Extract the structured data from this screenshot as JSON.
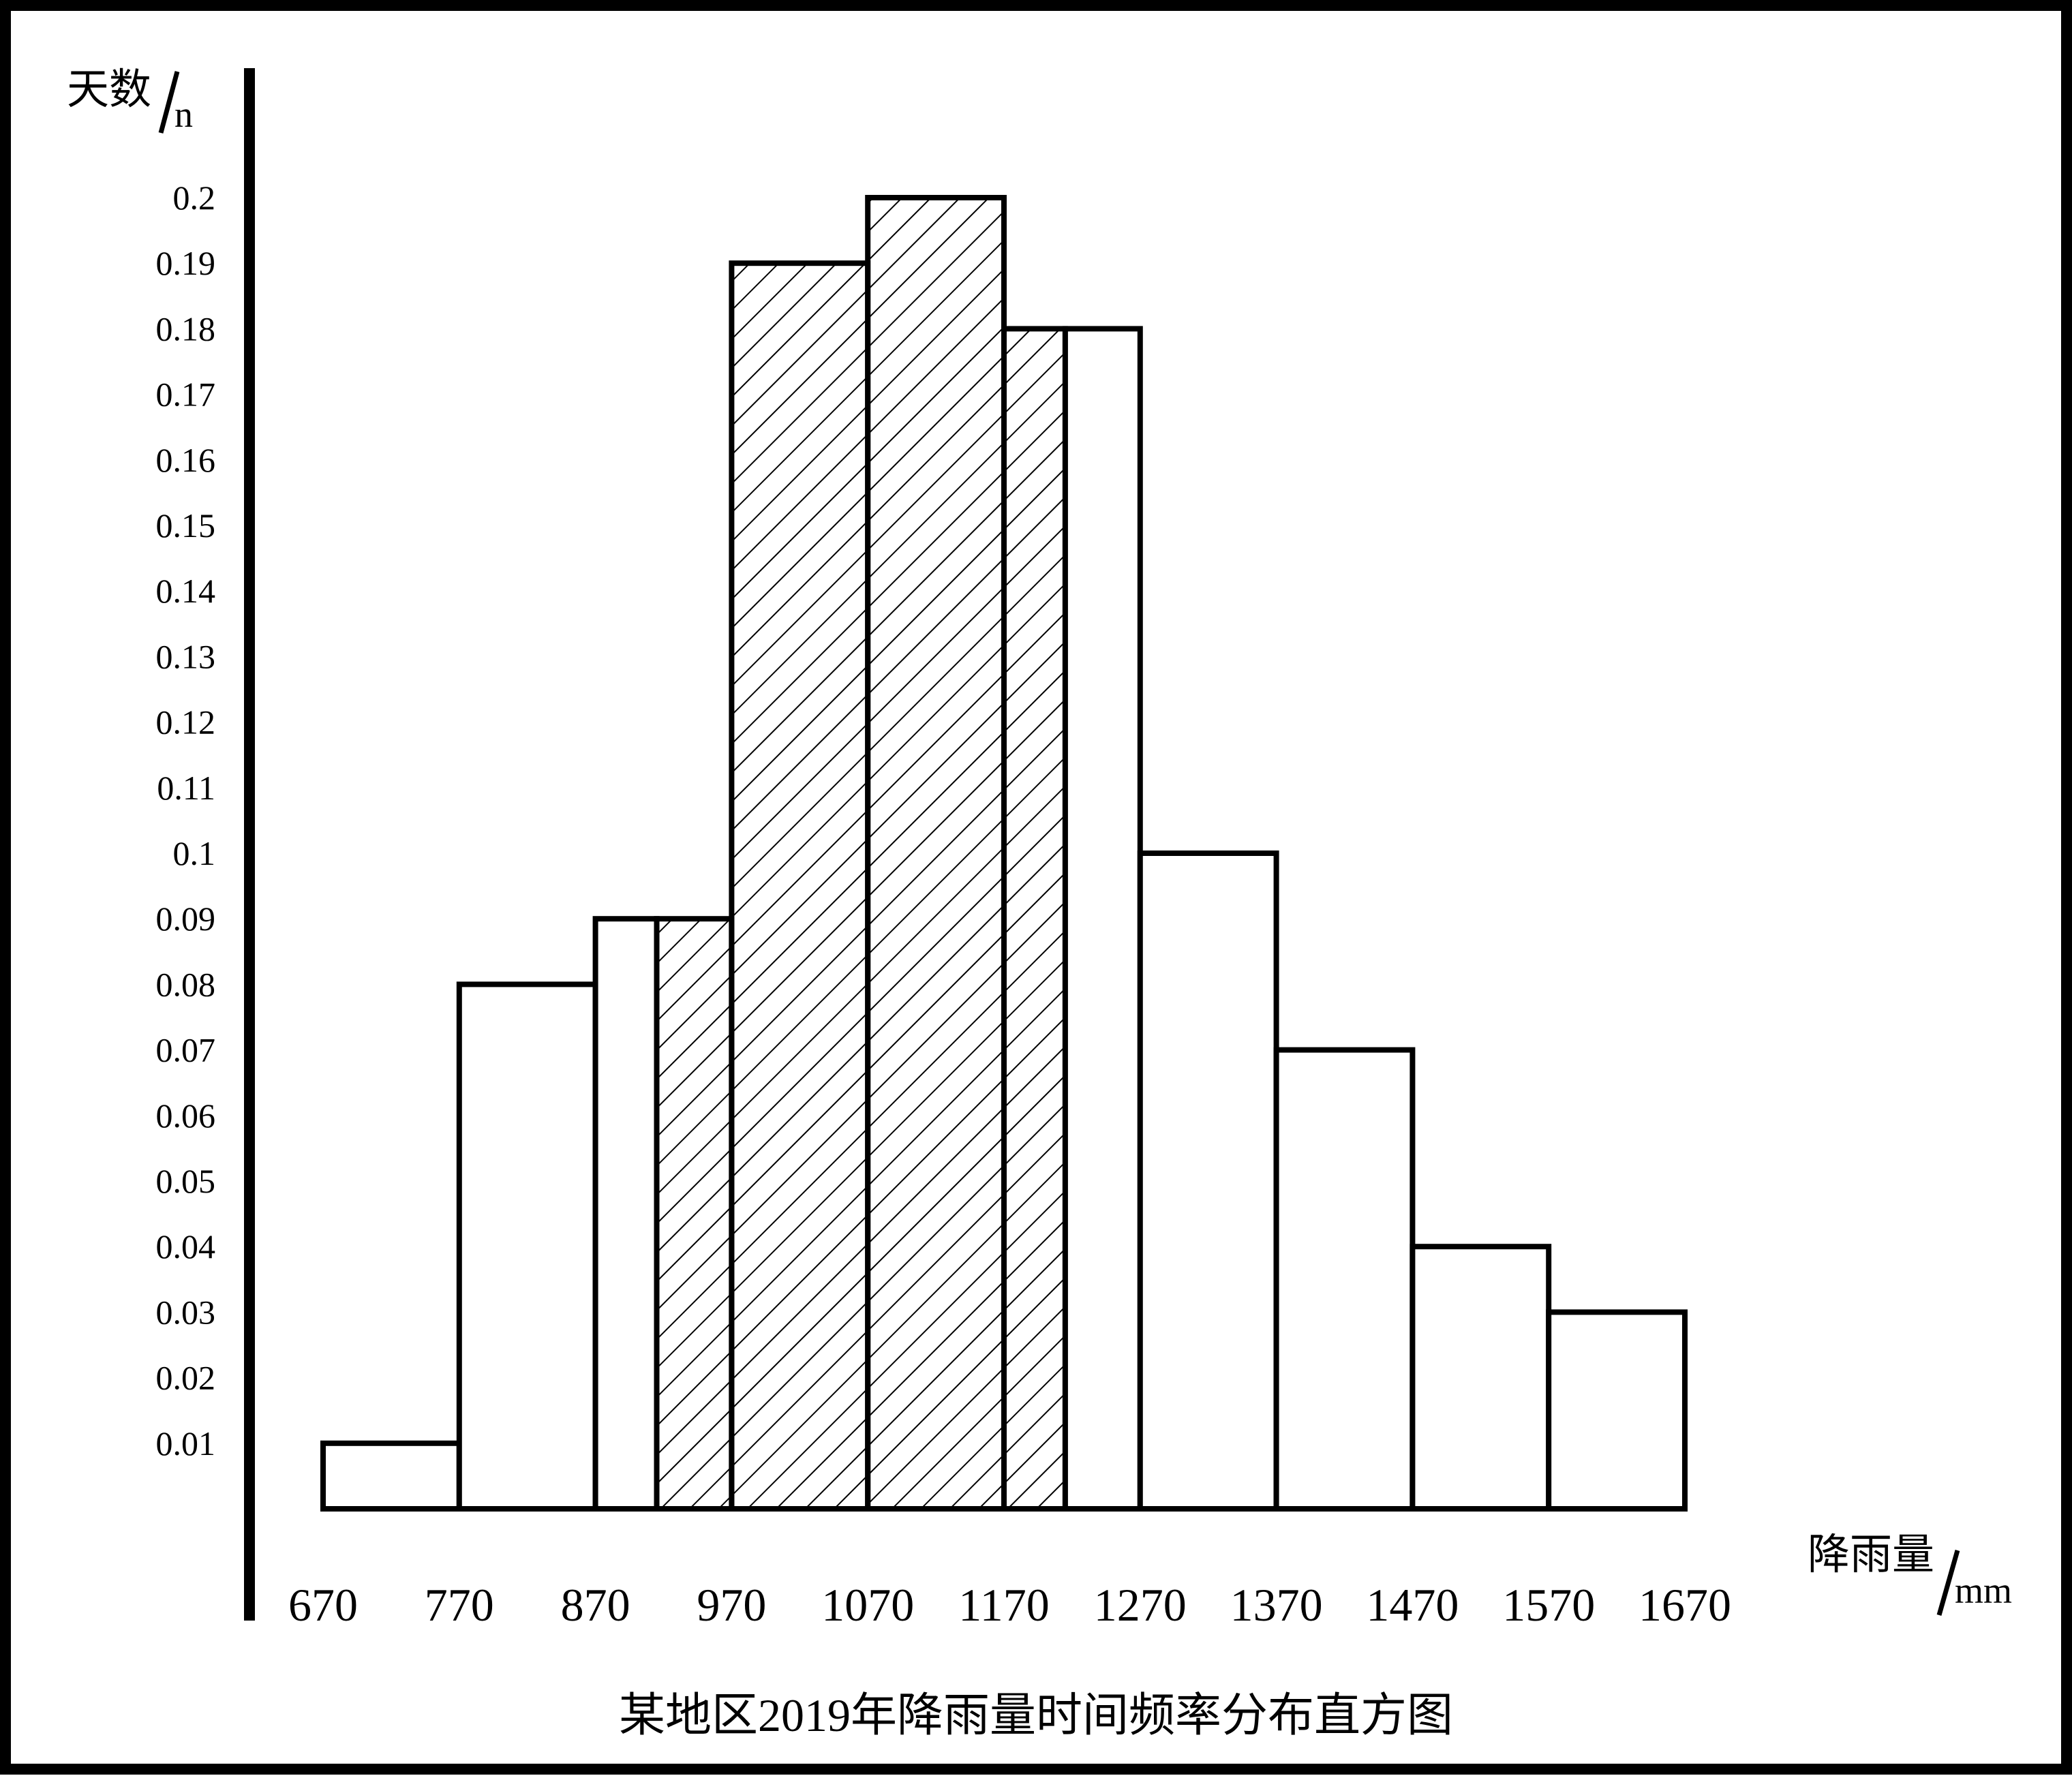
{
  "chart_data": {
    "type": "bar",
    "title": "某地区2019年降雨量时间频率分布直方图",
    "y_axis": {
      "label": "天数",
      "unit": "n"
    },
    "x_axis": {
      "label": "降雨量",
      "unit": "mm"
    },
    "y_ticks": [
      "0.01",
      "0.02",
      "0.03",
      "0.04",
      "0.05",
      "0.06",
      "0.07",
      "0.08",
      "0.09",
      "0.1",
      "0.11",
      "0.12",
      "0.13",
      "0.14",
      "0.15",
      "0.16",
      "0.17",
      "0.18",
      "0.19",
      "0.2"
    ],
    "x_ticks": [
      "670",
      "770",
      "870",
      "970",
      "1070",
      "1170",
      "1270",
      "1370",
      "1470",
      "1570",
      "1670"
    ],
    "xlim": [
      670,
      1670
    ],
    "ylim": [
      0,
      0.2
    ],
    "bins": [
      {
        "from": 670,
        "to": 770,
        "value": 0.01,
        "hatched": false
      },
      {
        "from": 770,
        "to": 870,
        "value": 0.08,
        "hatched": false
      },
      {
        "from": 870,
        "to": 915,
        "value": 0.09,
        "hatched": false
      },
      {
        "from": 915,
        "to": 970,
        "value": 0.09,
        "hatched": true
      },
      {
        "from": 970,
        "to": 1070,
        "value": 0.19,
        "hatched": true
      },
      {
        "from": 1070,
        "to": 1170,
        "value": 0.2,
        "hatched": true
      },
      {
        "from": 1170,
        "to": 1215,
        "value": 0.18,
        "hatched": true
      },
      {
        "from": 1215,
        "to": 1270,
        "value": 0.18,
        "hatched": false
      },
      {
        "from": 1270,
        "to": 1370,
        "value": 0.1,
        "hatched": false
      },
      {
        "from": 1370,
        "to": 1470,
        "value": 0.07,
        "hatched": false
      },
      {
        "from": 1470,
        "to": 1570,
        "value": 0.04,
        "hatched": false
      },
      {
        "from": 1570,
        "to": 1670,
        "value": 0.03,
        "hatched": false
      }
    ],
    "grid": false,
    "legend": "none",
    "colors": {
      "stroke": "#000000",
      "fill": "#ffffff",
      "hatch": "#000000"
    }
  }
}
